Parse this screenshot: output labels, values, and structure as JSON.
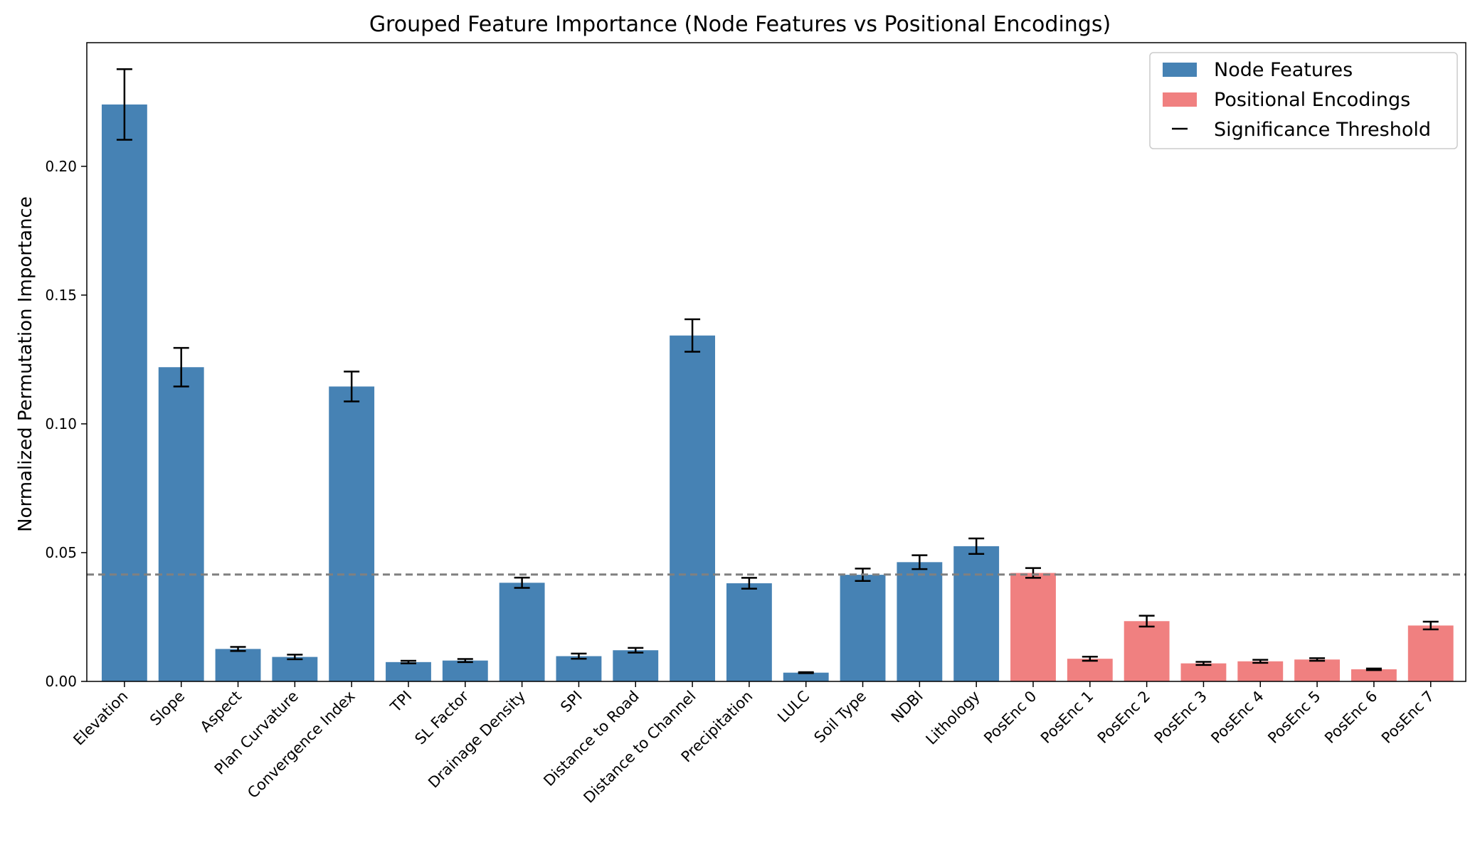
{
  "chart_data": {
    "type": "bar",
    "title": "Grouped Feature Importance (Node Features vs Positional Encodings)",
    "xlabel": "",
    "ylabel": "Normalized Permutation Importance",
    "ylim": [
      0,
      0.248
    ],
    "yticks": [
      "0.00",
      "0.05",
      "0.10",
      "0.15",
      "0.20"
    ],
    "threshold": 0.0415,
    "grid": false,
    "legend_position": "top-right",
    "categories": [
      "Elevation",
      "Slope",
      "Aspect",
      "Plan Curvature",
      "Convergence Index",
      "TPI",
      "SL Factor",
      "Drainage Density",
      "SPI",
      "Distance to Road",
      "Distance to Channel",
      "Precipitation",
      "LULC",
      "Soil Type",
      "NDBI",
      "Lithology",
      "PosEnc 0",
      "PosEnc 1",
      "PosEnc 2",
      "PosEnc 3",
      "PosEnc 4",
      "PosEnc 5",
      "PosEnc 6",
      "PosEnc 7"
    ],
    "values": [
      0.224,
      0.122,
      0.0126,
      0.0095,
      0.1145,
      0.0075,
      0.0081,
      0.0383,
      0.0098,
      0.0121,
      0.1343,
      0.0381,
      0.0034,
      0.0414,
      0.0463,
      0.0525,
      0.0421,
      0.0088,
      0.0234,
      0.007,
      0.0078,
      0.0085,
      0.0047,
      0.0217
    ],
    "errors": [
      0.0137,
      0.0075,
      0.0008,
      0.0009,
      0.0058,
      0.0005,
      0.0006,
      0.002,
      0.001,
      0.0009,
      0.0063,
      0.0021,
      0.0002,
      0.0024,
      0.0027,
      0.003,
      0.0019,
      0.0008,
      0.0021,
      0.0006,
      0.0006,
      0.0005,
      0.0003,
      0.0015
    ],
    "groups": [
      "node",
      "node",
      "node",
      "node",
      "node",
      "node",
      "node",
      "node",
      "node",
      "node",
      "node",
      "node",
      "node",
      "node",
      "node",
      "node",
      "pos",
      "pos",
      "pos",
      "pos",
      "pos",
      "pos",
      "pos",
      "pos"
    ],
    "series": [
      {
        "key": "node",
        "name": "Node Features",
        "color": "#4682b4"
      },
      {
        "key": "pos",
        "name": "Positional Encodings",
        "color": "#f08080"
      }
    ],
    "legend": [
      "Node Features",
      "Positional Encodings",
      "Significance Threshold"
    ],
    "threshold_color": "#808080"
  }
}
